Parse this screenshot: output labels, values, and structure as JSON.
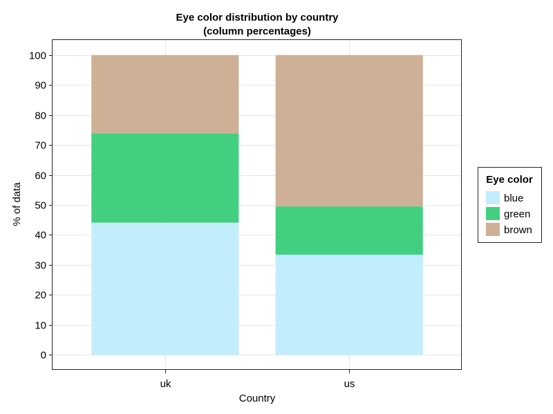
{
  "chart_data": {
    "type": "bar",
    "stacked": true,
    "title": "Eye color distribution by country",
    "subtitle": "(column percentages)",
    "xlabel": "Country",
    "ylabel": "% of data",
    "categories": [
      "uk",
      "us"
    ],
    "series": [
      {
        "name": "blue",
        "color": "#c2edfd",
        "values": [
          44.1,
          33.4
        ]
      },
      {
        "name": "green",
        "color": "#42cf80",
        "values": [
          29.8,
          16.1
        ]
      },
      {
        "name": "brown",
        "color": "#cdb095",
        "values": [
          26.1,
          50.5
        ]
      }
    ],
    "ylim": [
      -5,
      105
    ],
    "yticks": [
      0,
      10,
      20,
      30,
      40,
      50,
      60,
      70,
      80,
      90,
      100
    ],
    "grid": true,
    "legend": {
      "title": "Eye color",
      "placement": "right"
    }
  }
}
